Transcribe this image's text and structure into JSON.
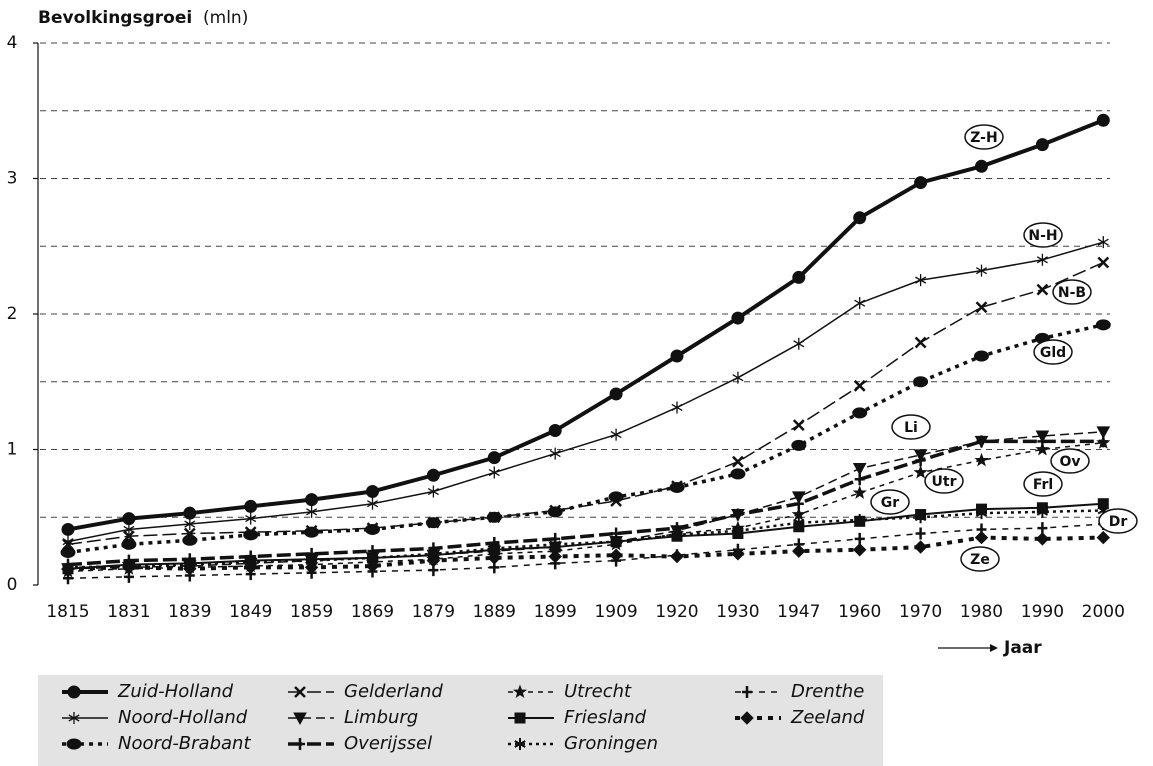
{
  "chart_data": {
    "type": "line",
    "ylabel": "Bevolkingsgroei",
    "ylabel_unit": "(mln)",
    "xlabel": "Jaar",
    "categories": [
      "1815",
      "1831",
      "1839",
      "1849",
      "1859",
      "1869",
      "1879",
      "1889",
      "1899",
      "1909",
      "1920",
      "1930",
      "1947",
      "1960",
      "1970",
      "1980",
      "1990",
      "2000"
    ],
    "ylim": [
      0,
      4
    ],
    "yticks": [
      0,
      1,
      2,
      3,
      4
    ],
    "ygrid": [
      0.5,
      1,
      1.5,
      2,
      2.5,
      3,
      3.5,
      4
    ],
    "grid": true,
    "series": [
      {
        "name": "Zuid-Holland",
        "color": "#111",
        "width": 4,
        "dash": "none",
        "marker": "circle",
        "values": [
          0.41,
          0.49,
          0.53,
          0.58,
          0.63,
          0.69,
          0.81,
          0.94,
          1.14,
          1.41,
          1.69,
          1.97,
          2.27,
          2.71,
          2.97,
          3.09,
          3.25,
          3.43
        ]
      },
      {
        "name": "Noord-Holland",
        "color": "#111",
        "width": 1.5,
        "dash": "none",
        "marker": "star",
        "values": [
          0.32,
          0.41,
          0.45,
          0.49,
          0.54,
          0.6,
          0.69,
          0.83,
          0.97,
          1.11,
          1.31,
          1.53,
          1.78,
          2.08,
          2.25,
          2.32,
          2.4,
          2.53
        ]
      },
      {
        "name": "Noord-Brabant",
        "color": "#111",
        "width": 3.5,
        "dash": "4 5",
        "marker": "ellipse",
        "values": [
          0.24,
          0.3,
          0.33,
          0.37,
          0.39,
          0.41,
          0.46,
          0.5,
          0.54,
          0.65,
          0.72,
          0.82,
          1.03,
          1.27,
          1.5,
          1.69,
          1.82,
          1.92
        ]
      },
      {
        "name": "Gelderland",
        "color": "#111",
        "width": 1.5,
        "dash": "14 5",
        "marker": "x",
        "values": [
          0.3,
          0.36,
          0.38,
          0.39,
          0.4,
          0.42,
          0.46,
          0.5,
          0.55,
          0.62,
          0.73,
          0.91,
          1.18,
          1.47,
          1.79,
          2.05,
          2.18,
          2.38
        ]
      },
      {
        "name": "Limburg",
        "color": "#111",
        "width": 1.5,
        "dash": "9 5",
        "marker": "tri",
        "values": [
          0.12,
          0.13,
          0.14,
          0.16,
          0.18,
          0.2,
          0.22,
          0.25,
          0.28,
          0.32,
          0.4,
          0.52,
          0.65,
          0.86,
          0.96,
          1.06,
          1.1,
          1.13
        ]
      },
      {
        "name": "Overijssel",
        "color": "#111",
        "width": 3.5,
        "dash": "14 5",
        "marker": "plus",
        "values": [
          0.15,
          0.18,
          0.19,
          0.21,
          0.23,
          0.25,
          0.27,
          0.31,
          0.34,
          0.38,
          0.42,
          0.52,
          0.6,
          0.78,
          0.92,
          1.06,
          1.06,
          1.06
        ]
      },
      {
        "name": "Utrecht",
        "color": "#111",
        "width": 1.5,
        "dash": "5 5",
        "marker": "smallstar",
        "values": [
          0.1,
          0.12,
          0.13,
          0.14,
          0.15,
          0.17,
          0.19,
          0.23,
          0.25,
          0.3,
          0.38,
          0.42,
          0.52,
          0.68,
          0.83,
          0.92,
          1.0,
          1.05
        ]
      },
      {
        "name": "Friesland",
        "color": "#111",
        "width": 2,
        "dash": "none",
        "marker": "square",
        "values": [
          0.12,
          0.15,
          0.16,
          0.18,
          0.19,
          0.2,
          0.22,
          0.26,
          0.28,
          0.32,
          0.36,
          0.38,
          0.43,
          0.47,
          0.52,
          0.56,
          0.57,
          0.6
        ]
      },
      {
        "name": "Groningen",
        "color": "#111",
        "width": 2.5,
        "dash": "3 4",
        "marker": "asterisk",
        "values": [
          0.13,
          0.14,
          0.15,
          0.17,
          0.18,
          0.2,
          0.23,
          0.27,
          0.3,
          0.32,
          0.37,
          0.4,
          0.46,
          0.48,
          0.5,
          0.53,
          0.54,
          0.55
        ]
      },
      {
        "name": "Drenthe",
        "color": "#111",
        "width": 1.5,
        "dash": "6 6",
        "marker": "plus",
        "values": [
          0.05,
          0.06,
          0.07,
          0.08,
          0.09,
          0.1,
          0.11,
          0.13,
          0.16,
          0.18,
          0.22,
          0.26,
          0.3,
          0.34,
          0.38,
          0.41,
          0.42,
          0.45
        ]
      },
      {
        "name": "Zeeland",
        "color": "#111",
        "width": 4,
        "dash": "5 6",
        "marker": "diamond",
        "values": [
          0.12,
          0.13,
          0.12,
          0.13,
          0.13,
          0.14,
          0.18,
          0.2,
          0.21,
          0.22,
          0.21,
          0.23,
          0.25,
          0.26,
          0.28,
          0.35,
          0.34,
          0.35
        ]
      }
    ],
    "annotations": [
      "Z-H",
      "N-H",
      "N-B",
      "Gld",
      "Li",
      "Utr",
      "Ov",
      "Gr",
      "Frl",
      "Dr",
      "Ze"
    ]
  }
}
